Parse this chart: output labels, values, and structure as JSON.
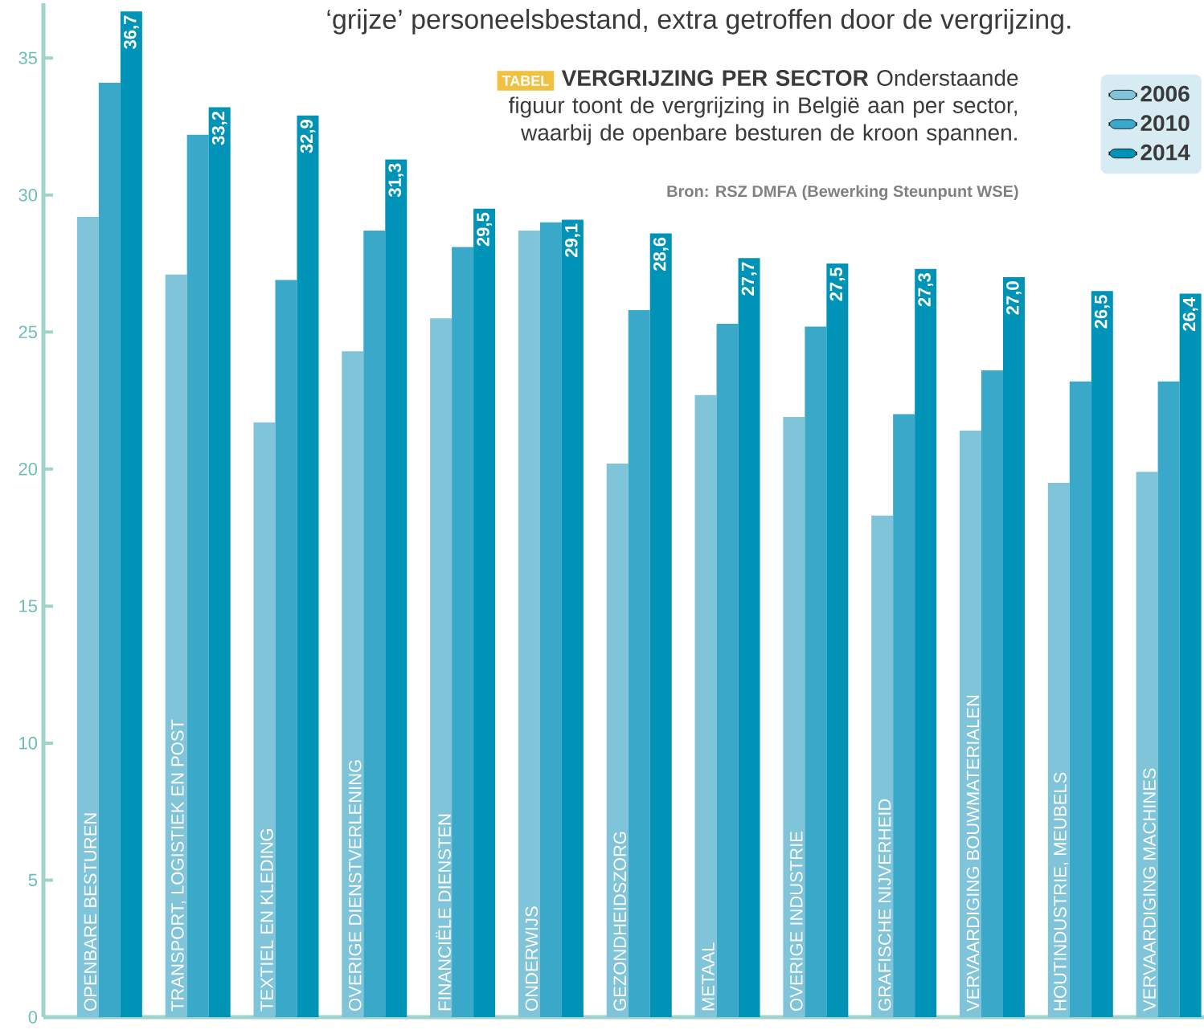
{
  "chart_data": {
    "type": "bar",
    "title": "‘grijze’ personeelsbestand, extra getroffen door de vergrijzing.",
    "subtitle": "**VERGRIJZING PER SECTOR** Onderstaande figuur toont de vergrijzing in België aan per sector, waarbij de openbare besturen de kroon spannen.",
    "annotations": [
      "TABEL",
      "Bron: RSZ DMFA (Bewerking Steunpunt WSE)"
    ],
    "categories": [
      "OPENBARE BESTUREN",
      "TRANSPORT, LOGISTIEK EN POST",
      "TEXTIEL EN KLEDING",
      "OVERIGE DIENSTVERLENING",
      "FINANCIËLE DIENSTEN",
      "ONDERWIJS",
      "GEZONDHEIDSZORG",
      "METAAL",
      "OVERIGE INDUSTRIE",
      "GRAFISCHE NIJVERHEID",
      "VERVAARDIGING BOUWMATERIALEN",
      "HOUTINDUSTRIE, MEUBELS",
      "VERVAARDIGING MACHINES"
    ],
    "series": [
      {
        "name": "2006",
        "color": "#7fc4d8",
        "values": [
          29.2,
          27.1,
          21.7,
          24.3,
          25.5,
          28.7,
          20.2,
          22.7,
          21.9,
          18.3,
          21.4,
          19.5,
          19.9
        ]
      },
      {
        "name": "2010",
        "color": "#3aa8c8",
        "values": [
          34.1,
          32.2,
          26.9,
          28.7,
          28.1,
          29.0,
          25.8,
          25.3,
          25.2,
          22.0,
          23.6,
          23.2,
          23.2
        ]
      },
      {
        "name": "2014",
        "color": "#0093b8",
        "values": [
          36.7,
          33.2,
          32.9,
          31.3,
          29.5,
          29.1,
          28.6,
          27.7,
          27.5,
          27.3,
          27.0,
          26.5,
          26.4
        ],
        "value_labels": [
          "36,7",
          "33,2",
          "32,9",
          "31,3",
          "29,5",
          "29,1",
          "28,6",
          "27,7",
          "27,5",
          "27,3",
          "27,0",
          "26,5",
          "26,4"
        ]
      }
    ],
    "ylim": [
      0,
      37
    ],
    "yticks": [
      0,
      5,
      10,
      15,
      20,
      25,
      30,
      35
    ],
    "legend": "top right"
  }
}
